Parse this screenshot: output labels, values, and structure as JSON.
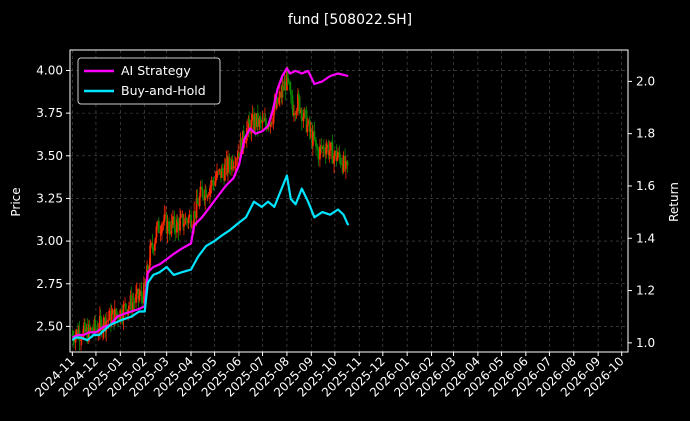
{
  "chart_data": {
    "type": "line",
    "title": "fund [508022.SH]",
    "ylabel_left": "Price",
    "ylabel_right": "Return",
    "ylim_left": [
      2.35,
      4.12
    ],
    "ylim_right": [
      0.965,
      2.12
    ],
    "yticks_left": [
      2.5,
      2.75,
      3.0,
      3.25,
      3.5,
      3.75,
      4.0
    ],
    "yticks_left_labels": [
      "2.50",
      "2.75",
      "3.00",
      "3.25",
      "3.50",
      "3.75",
      "4.00"
    ],
    "yticks_right": [
      1.0,
      1.2,
      1.4,
      1.6,
      1.8,
      2.0
    ],
    "yticks_right_labels": [
      "1.0",
      "1.2",
      "1.4",
      "1.6",
      "1.8",
      "2.0"
    ],
    "xticks": [
      "2024-11",
      "2024-12",
      "2025-01",
      "2025-02",
      "2025-03",
      "2025-04",
      "2025-05",
      "2025-06",
      "2025-07",
      "2025-08",
      "2025-09",
      "2025-10",
      "2025-11",
      "2025-12",
      "2026-01",
      "2026-02",
      "2026-03",
      "2026-04",
      "2026-05",
      "2026-06",
      "2026-07",
      "2026-08",
      "2026-09",
      "2026-10"
    ],
    "grid": true,
    "legend_position": "top-left",
    "colors": {
      "background": "#000000",
      "strategy": "#ff00ff",
      "buyhold": "#00e5ff",
      "candle_up": "#ff2a00",
      "candle_down": "#0a8a00",
      "grid": "#555555",
      "axes": "#ffffff"
    },
    "series": [
      {
        "name": "AI Strategy",
        "axis": "right",
        "points": [
          [
            "2024-11-01",
            1.02
          ],
          [
            "2024-11-08",
            1.03
          ],
          [
            "2024-11-15",
            1.03
          ],
          [
            "2024-11-22",
            1.04
          ],
          [
            "2024-12-01",
            1.04
          ],
          [
            "2024-12-10",
            1.06
          ],
          [
            "2024-12-20",
            1.07
          ],
          [
            "2024-12-28",
            1.1
          ],
          [
            "2025-01-05",
            1.11
          ],
          [
            "2025-01-15",
            1.12
          ],
          [
            "2025-01-25",
            1.13
          ],
          [
            "2025-02-01",
            1.14
          ],
          [
            "2025-02-05",
            1.27
          ],
          [
            "2025-02-12",
            1.29
          ],
          [
            "2025-02-20",
            1.3
          ],
          [
            "2025-03-01",
            1.32
          ],
          [
            "2025-03-10",
            1.34
          ],
          [
            "2025-03-20",
            1.36
          ],
          [
            "2025-04-01",
            1.38
          ],
          [
            "2025-04-05",
            1.45
          ],
          [
            "2025-04-15",
            1.48
          ],
          [
            "2025-04-25",
            1.52
          ],
          [
            "2025-05-05",
            1.56
          ],
          [
            "2025-05-15",
            1.6
          ],
          [
            "2025-05-25",
            1.63
          ],
          [
            "2025-06-01",
            1.68
          ],
          [
            "2025-06-08",
            1.78
          ],
          [
            "2025-06-15",
            1.82
          ],
          [
            "2025-06-22",
            1.8
          ],
          [
            "2025-07-01",
            1.81
          ],
          [
            "2025-07-08",
            1.83
          ],
          [
            "2025-07-14",
            1.89
          ],
          [
            "2025-07-20",
            1.97
          ],
          [
            "2025-07-26",
            2.02
          ],
          [
            "2025-08-01",
            2.05
          ],
          [
            "2025-08-05",
            2.03
          ],
          [
            "2025-08-12",
            2.04
          ],
          [
            "2025-08-20",
            2.03
          ],
          [
            "2025-08-28",
            2.04
          ],
          [
            "2025-09-05",
            1.99
          ],
          [
            "2025-09-15",
            2.0
          ],
          [
            "2025-09-25",
            2.02
          ],
          [
            "2025-10-05",
            2.03
          ],
          [
            "2025-10-18",
            2.02
          ]
        ]
      },
      {
        "name": "Buy-and-Hold",
        "axis": "right",
        "points": [
          [
            "2024-11-01",
            1.01
          ],
          [
            "2024-11-05",
            1.02
          ],
          [
            "2024-11-12",
            1.02
          ],
          [
            "2024-11-20",
            1.01
          ],
          [
            "2024-11-28",
            1.03
          ],
          [
            "2024-12-05",
            1.03
          ],
          [
            "2024-12-12",
            1.05
          ],
          [
            "2024-12-20",
            1.07
          ],
          [
            "2024-12-28",
            1.08
          ],
          [
            "2025-01-05",
            1.09
          ],
          [
            "2025-01-15",
            1.1
          ],
          [
            "2025-01-25",
            1.12
          ],
          [
            "2025-02-01",
            1.12
          ],
          [
            "2025-02-05",
            1.23
          ],
          [
            "2025-02-12",
            1.26
          ],
          [
            "2025-02-20",
            1.27
          ],
          [
            "2025-03-01",
            1.29
          ],
          [
            "2025-03-10",
            1.26
          ],
          [
            "2025-03-20",
            1.27
          ],
          [
            "2025-04-01",
            1.28
          ],
          [
            "2025-04-10",
            1.33
          ],
          [
            "2025-04-20",
            1.37
          ],
          [
            "2025-05-01",
            1.39
          ],
          [
            "2025-05-10",
            1.41
          ],
          [
            "2025-05-20",
            1.43
          ],
          [
            "2025-06-01",
            1.46
          ],
          [
            "2025-06-10",
            1.48
          ],
          [
            "2025-06-20",
            1.54
          ],
          [
            "2025-06-30",
            1.52
          ],
          [
            "2025-07-08",
            1.54
          ],
          [
            "2025-07-16",
            1.52
          ],
          [
            "2025-07-24",
            1.58
          ],
          [
            "2025-08-01",
            1.64
          ],
          [
            "2025-08-06",
            1.55
          ],
          [
            "2025-08-12",
            1.53
          ],
          [
            "2025-08-20",
            1.59
          ],
          [
            "2025-08-28",
            1.54
          ],
          [
            "2025-09-05",
            1.48
          ],
          [
            "2025-09-15",
            1.5
          ],
          [
            "2025-09-25",
            1.49
          ],
          [
            "2025-10-05",
            1.51
          ],
          [
            "2025-10-12",
            1.49
          ],
          [
            "2025-10-18",
            1.45
          ]
        ]
      },
      {
        "name": "Price",
        "type": "candlestick",
        "axis": "left",
        "points": [
          [
            "2024-11-01",
            2.45
          ],
          [
            "2024-11-10",
            2.47
          ],
          [
            "2024-11-20",
            2.46
          ],
          [
            "2024-12-01",
            2.49
          ],
          [
            "2024-12-10",
            2.52
          ],
          [
            "2024-12-20",
            2.55
          ],
          [
            "2025-01-01",
            2.58
          ],
          [
            "2025-01-10",
            2.62
          ],
          [
            "2025-01-20",
            2.65
          ],
          [
            "2025-02-01",
            2.7
          ],
          [
            "2025-02-08",
            2.92
          ],
          [
            "2025-02-16",
            3.05
          ],
          [
            "2025-02-24",
            3.12
          ],
          [
            "2025-03-05",
            3.08
          ],
          [
            "2025-03-15",
            3.1
          ],
          [
            "2025-03-25",
            3.12
          ],
          [
            "2025-04-05",
            3.15
          ],
          [
            "2025-04-15",
            3.28
          ],
          [
            "2025-04-25",
            3.32
          ],
          [
            "2025-05-05",
            3.38
          ],
          [
            "2025-05-15",
            3.42
          ],
          [
            "2025-05-25",
            3.48
          ],
          [
            "2025-06-03",
            3.55
          ],
          [
            "2025-06-12",
            3.66
          ],
          [
            "2025-06-22",
            3.7
          ],
          [
            "2025-07-02",
            3.68
          ],
          [
            "2025-07-12",
            3.72
          ],
          [
            "2025-07-22",
            3.82
          ],
          [
            "2025-08-01",
            3.95
          ],
          [
            "2025-08-08",
            3.78
          ],
          [
            "2025-08-16",
            3.82
          ],
          [
            "2025-08-24",
            3.72
          ],
          [
            "2025-09-01",
            3.62
          ],
          [
            "2025-09-10",
            3.52
          ],
          [
            "2025-09-20",
            3.56
          ],
          [
            "2025-10-01",
            3.5
          ],
          [
            "2025-10-10",
            3.48
          ],
          [
            "2025-10-18",
            3.38
          ]
        ]
      }
    ]
  }
}
